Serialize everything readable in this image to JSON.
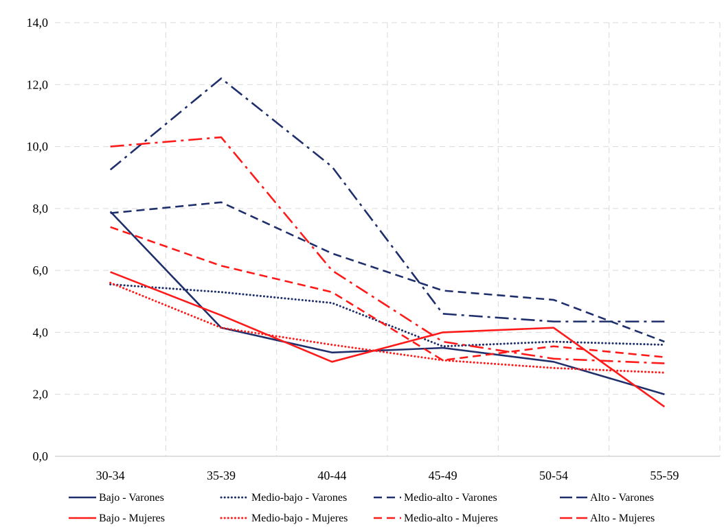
{
  "chart_data": {
    "type": "line",
    "categories": [
      "30-34",
      "35-39",
      "40-44",
      "45-49",
      "50-54",
      "55-59"
    ],
    "ylim": [
      0,
      14
    ],
    "y_ticks": [
      "0,0",
      "2,0",
      "4,0",
      "6,0",
      "8,0",
      "10,0",
      "12,0",
      "14,0"
    ],
    "grid": true,
    "legend_position": "bottom",
    "series": [
      {
        "name": "Bajo - Varones",
        "color": "#1f2f6b",
        "dash": "solid",
        "values": [
          7.9,
          4.15,
          3.35,
          3.5,
          3.05,
          2.0
        ]
      },
      {
        "name": "Medio-bajo - Varones",
        "color": "#1f2f6b",
        "dash": "dotted",
        "values": [
          5.55,
          5.3,
          4.95,
          3.55,
          3.7,
          3.6
        ]
      },
      {
        "name": "Medio-alto - Varones",
        "color": "#1f2f6b",
        "dash": "dashed",
        "values": [
          7.85,
          8.2,
          6.55,
          5.35,
          5.05,
          3.7
        ]
      },
      {
        "name": "Alto - Varones",
        "color": "#1f2f6b",
        "dash": "dashdot",
        "values": [
          9.25,
          12.2,
          9.35,
          4.6,
          4.35,
          4.35
        ]
      },
      {
        "name": "Bajo - Mujeres",
        "color": "#ff1a1a",
        "dash": "solid",
        "values": [
          5.95,
          4.55,
          3.05,
          4.0,
          4.15,
          1.6
        ]
      },
      {
        "name": "Medio-bajo - Mujeres",
        "color": "#ff1a1a",
        "dash": "dotted",
        "values": [
          5.6,
          4.15,
          3.6,
          3.1,
          2.85,
          2.7
        ]
      },
      {
        "name": "Medio-alto - Mujeres",
        "color": "#ff1a1a",
        "dash": "dashed",
        "values": [
          7.4,
          6.15,
          5.3,
          3.1,
          3.55,
          3.2
        ]
      },
      {
        "name": "Alto - Mujeres",
        "color": "#ff1a1a",
        "dash": "dashdot",
        "values": [
          10.0,
          10.3,
          6.0,
          3.7,
          3.15,
          3.0
        ]
      }
    ]
  }
}
